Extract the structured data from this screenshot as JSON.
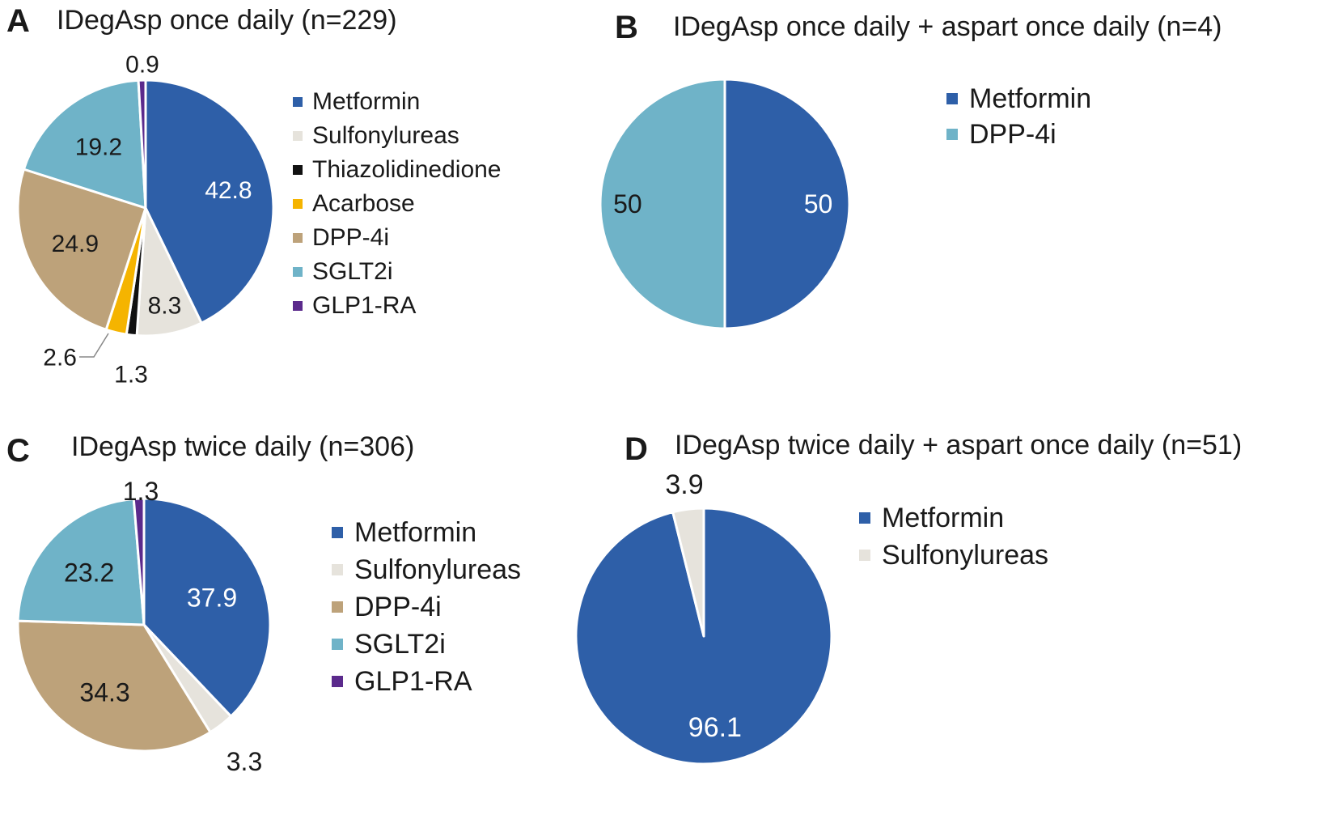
{
  "chart_data": [
    {
      "type": "pie",
      "panel": "A",
      "title": "IDegAsp once daily (n=229)",
      "categories": [
        "Metformin",
        "Sulfonylureas",
        "Thiazolidinedione",
        "Acarbose",
        "DPP-4i",
        "SGLT2i",
        "GLP1-RA"
      ],
      "values": [
        42.8,
        8.3,
        1.3,
        2.6,
        24.9,
        19.2,
        0.9
      ],
      "labels": [
        "42.8",
        "8.3",
        "1.3",
        "2.6",
        "24.9",
        "19.2",
        "0.9"
      ],
      "colors": [
        "#2e5fa8",
        "#e6e3dc",
        "#111111",
        "#f5b400",
        "#bda27a",
        "#6fb3c8",
        "#5b2a8c"
      ],
      "legend": [
        "Metformin",
        "Sulfonylureas",
        "Thiazolidinedione",
        "Acarbose",
        "DPP-4i",
        "SGLT2i",
        "GLP1-RA"
      ],
      "legend_colors": [
        "#2e5fa8",
        "#e6e3dc",
        "#111111",
        "#f5b400",
        "#bda27a",
        "#6fb3c8",
        "#5b2a8c"
      ],
      "legend_position": "right"
    },
    {
      "type": "pie",
      "panel": "B",
      "title": "IDegAsp once daily + aspart once daily (n=4)",
      "categories": [
        "Metformin",
        "DPP-4i"
      ],
      "values": [
        50,
        50
      ],
      "labels": [
        "50",
        "50"
      ],
      "colors": [
        "#2e5fa8",
        "#6fb3c8"
      ],
      "legend": [
        "Metformin",
        "DPP-4i"
      ],
      "legend_colors": [
        "#2e5fa8",
        "#6fb3c8"
      ],
      "legend_position": "right"
    },
    {
      "type": "pie",
      "panel": "C",
      "title": "IDegAsp twice daily (n=306)",
      "categories": [
        "Metformin",
        "Sulfonylureas",
        "DPP-4i",
        "SGLT2i",
        "GLP1-RA"
      ],
      "values": [
        37.9,
        3.3,
        34.3,
        23.2,
        1.3
      ],
      "labels": [
        "37.9",
        "3.3",
        "34.3",
        "23.2",
        "1.3"
      ],
      "colors": [
        "#2e5fa8",
        "#e6e3dc",
        "#bda27a",
        "#6fb3c8",
        "#5b2a8c"
      ],
      "legend": [
        "Metformin",
        "Sulfonylureas",
        "DPP-4i",
        "SGLT2i",
        "GLP1-RA"
      ],
      "legend_colors": [
        "#2e5fa8",
        "#e6e3dc",
        "#bda27a",
        "#6fb3c8",
        "#5b2a8c"
      ],
      "legend_position": "right"
    },
    {
      "type": "pie",
      "panel": "D",
      "title": "IDegAsp twice daily + aspart once daily (n=51)",
      "categories": [
        "Metformin",
        "Sulfonylureas"
      ],
      "values": [
        96.1,
        3.9
      ],
      "labels": [
        "96.1",
        "3.9"
      ],
      "colors": [
        "#2e5fa8",
        "#e6e3dc"
      ],
      "legend": [
        "Metformin",
        "Sulfonylureas"
      ],
      "legend_colors": [
        "#2e5fa8",
        "#e6e3dc"
      ],
      "legend_position": "right"
    }
  ]
}
